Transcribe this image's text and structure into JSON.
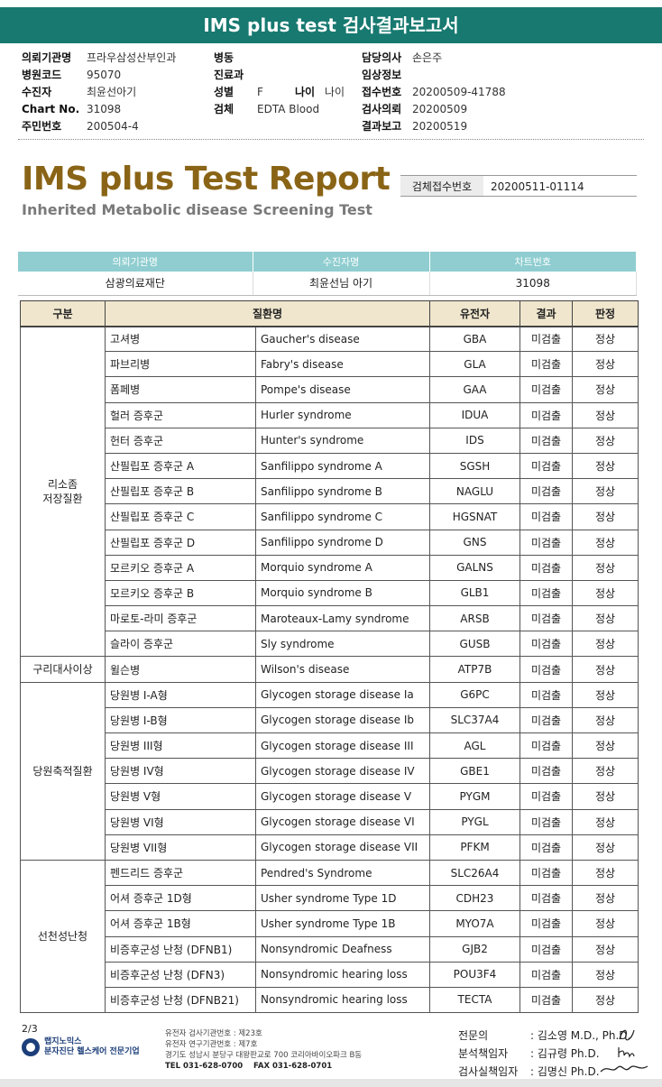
{
  "banner": "IMS plus test 검사결과보고서",
  "header": {
    "col1": [
      {
        "label": "의뢰기관명",
        "value": "프라우삼성산부인과"
      },
      {
        "label": "병원코드",
        "value": "95070"
      },
      {
        "label": "수진자",
        "value": "최윤선아기"
      },
      {
        "label": "Chart No.",
        "value": "31098"
      },
      {
        "label": "주민번호",
        "value": "200504-4"
      }
    ],
    "col2": [
      {
        "label": "병동",
        "value": ""
      },
      {
        "label": "진료과",
        "value": ""
      },
      {
        "label": "성별",
        "value": "F"
      },
      {
        "label": "검체",
        "value": "EDTA Blood"
      }
    ],
    "age": {
      "label": "나이",
      "value": "나이"
    },
    "col3": [
      {
        "label": "담당의사",
        "value": "손은주"
      },
      {
        "label": "임상정보",
        "value": ""
      },
      {
        "label": "접수번호",
        "value": "20200509-41788"
      },
      {
        "label": "검사의뢰",
        "value": "20200509"
      },
      {
        "label": "결과보고",
        "value": "20200519"
      }
    ]
  },
  "report": {
    "title": "IMS plus Test Report",
    "subtitle": "Inherited Metabolic disease Screening Test",
    "accession_label": "검체접수번호",
    "accession_value": "20200511-01114"
  },
  "patient_table": {
    "headers": [
      "의뢰기관명",
      "수진자명",
      "차트번호"
    ],
    "values": [
      "삼광의료재단",
      "최윤선님 아기",
      "31098"
    ]
  },
  "results": {
    "headers": {
      "group": "구분",
      "disease": "질환명",
      "gene": "유전자",
      "result": "결과",
      "judgment": "판정"
    },
    "groups": [
      "리소좀\n저장질환",
      "구리대사이상",
      "당원축적질환",
      "선천성난청"
    ],
    "rows": [
      {
        "kr": "고셔병",
        "en": "Gaucher's disease",
        "gene": "GBA",
        "result": "미검출",
        "judge": "정상"
      },
      {
        "kr": "파브리병",
        "en": "Fabry's disease",
        "gene": "GLA",
        "result": "미검출",
        "judge": "정상"
      },
      {
        "kr": "폼페병",
        "en": "Pompe's disease",
        "gene": "GAA",
        "result": "미검출",
        "judge": "정상"
      },
      {
        "kr": "헐러 증후군",
        "en": "Hurler syndrome",
        "gene": "IDUA",
        "result": "미검출",
        "judge": "정상"
      },
      {
        "kr": "헌터 증후군",
        "en": "Hunter's syndrome",
        "gene": "IDS",
        "result": "미검출",
        "judge": "정상"
      },
      {
        "kr": "산필립포 증후군 A",
        "en": "Sanfilippo syndrome A",
        "gene": "SGSH",
        "result": "미검출",
        "judge": "정상"
      },
      {
        "kr": "산필립포 증후군 B",
        "en": "Sanfilippo syndrome B",
        "gene": "NAGLU",
        "result": "미검출",
        "judge": "정상"
      },
      {
        "kr": "산필립포 증후군 C",
        "en": "Sanfilippo syndrome C",
        "gene": "HGSNAT",
        "result": "미검출",
        "judge": "정상"
      },
      {
        "kr": "산필립포 증후군 D",
        "en": "Sanfilippo syndrome D",
        "gene": "GNS",
        "result": "미검출",
        "judge": "정상"
      },
      {
        "kr": "모르키오 증후군 A",
        "en": "Morquio syndrome A",
        "gene": "GALNS",
        "result": "미검출",
        "judge": "정상"
      },
      {
        "kr": "모르키오 증후군 B",
        "en": "Morquio syndrome B",
        "gene": "GLB1",
        "result": "미검출",
        "judge": "정상"
      },
      {
        "kr": "마로토-라미 증후군",
        "en": "Maroteaux-Lamy syndrome",
        "gene": "ARSB",
        "result": "미검출",
        "judge": "정상"
      },
      {
        "kr": "슬라이 증후군",
        "en": "Sly syndrome",
        "gene": "GUSB",
        "result": "미검출",
        "judge": "정상"
      },
      {
        "kr": "윌슨병",
        "en": "Wilson's disease",
        "gene": "ATP7B",
        "result": "미검출",
        "judge": "정상"
      },
      {
        "kr": "당원병 I-A형",
        "en": "Glycogen storage disease Ia",
        "gene": "G6PC",
        "result": "미검출",
        "judge": "정상"
      },
      {
        "kr": "당원병 I-B형",
        "en": "Glycogen storage disease Ib",
        "gene": "SLC37A4",
        "result": "미검출",
        "judge": "정상"
      },
      {
        "kr": "당원병 III형",
        "en": "Glycogen storage disease III",
        "gene": "AGL",
        "result": "미검출",
        "judge": "정상"
      },
      {
        "kr": "당원병 IV형",
        "en": "Glycogen storage disease IV",
        "gene": "GBE1",
        "result": "미검출",
        "judge": "정상"
      },
      {
        "kr": "당원병 V형",
        "en": "Glycogen storage disease V",
        "gene": "PYGM",
        "result": "미검출",
        "judge": "정상"
      },
      {
        "kr": "당원병 VI형",
        "en": "Glycogen storage disease VI",
        "gene": "PYGL",
        "result": "미검출",
        "judge": "정상"
      },
      {
        "kr": "당원병 VII형",
        "en": "Glycogen storage disease VII",
        "gene": "PFKM",
        "result": "미검출",
        "judge": "정상"
      },
      {
        "kr": "펜드리드 증후군",
        "en": "Pendred's Syndrome",
        "gene": "SLC26A4",
        "result": "미검출",
        "judge": "정상"
      },
      {
        "kr": "어셔 증후군 1D형",
        "en": "Usher syndrome Type 1D",
        "gene": "CDH23",
        "result": "미검출",
        "judge": "정상"
      },
      {
        "kr": "어셔 증후군 1B형",
        "en": "Usher syndrome Type 1B",
        "gene": "MYO7A",
        "result": "미검출",
        "judge": "정상"
      },
      {
        "kr": "비증후군성 난청 (DFNB1)",
        "en": "Nonsyndromic Deafness",
        "gene": "GJB2",
        "result": "미검출",
        "judge": "정상"
      },
      {
        "kr": "비증후군성 난청 (DFN3)",
        "en": "Nonsyndromic hearing loss",
        "gene": "POU3F4",
        "result": "미검출",
        "judge": "정상"
      },
      {
        "kr": "비증후군성 난청 (DFNB21)",
        "en": "Nonsyndromic hearing loss",
        "gene": "TECTA",
        "result": "미검출",
        "judge": "정상"
      }
    ]
  },
  "footer": {
    "page": "2/3",
    "logo_line1": "랩지노믹스",
    "logo_line2": "분자진단 헬스케어 전문기업",
    "info": [
      "유전자 검사기관번호 : 제23호",
      "유전자 연구기관번호 : 제7호",
      "경기도 성남시 분당구 대왕판교로 700 코리아바이오파크 B동"
    ],
    "tel": "TEL 031-628-0700",
    "fax": "FAX 031-628-0701",
    "signers": [
      {
        "role": "전문의",
        "name": ": 김소영 M.D., Ph.D."
      },
      {
        "role": "분석책임자",
        "name": ": 김규령 Ph.D."
      },
      {
        "role": "검사실책임자",
        "name": ": 김명신 Ph.D."
      }
    ]
  },
  "colors": {
    "banner": "#177970",
    "title": "#8a6416",
    "patient_header": "#8fcdd0",
    "table_header": "#efe6cd"
  }
}
